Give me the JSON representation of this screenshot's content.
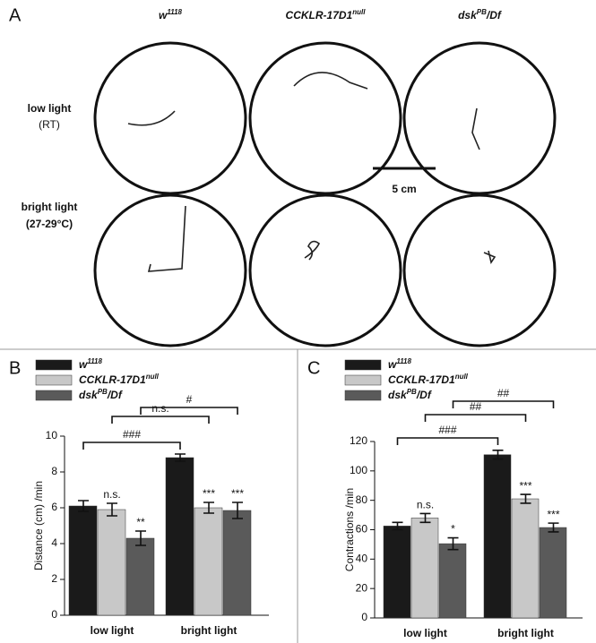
{
  "panel_a": {
    "label": "A",
    "columns": [
      [
        "w",
        "1118"
      ],
      [
        "CCKLR-17D1",
        "null"
      ],
      [
        "dsk",
        "PB",
        "/Df"
      ]
    ],
    "rows": [
      [
        "low light",
        "(RT)"
      ],
      [
        "bright light",
        "(27-29°C)"
      ]
    ],
    "scale_bar": "5 cm"
  },
  "chart_data": [
    {
      "type": "bar",
      "panel_label": "B",
      "y_label": "Distance (cm) /min",
      "categories": [
        "low light",
        "bright light"
      ],
      "series": [
        {
          "name": [
            "w",
            "1118"
          ],
          "color": "#1a1a1a",
          "values": [
            6.1,
            8.8
          ],
          "errors": [
            0.3,
            0.2
          ],
          "annotations": [
            null,
            null
          ]
        },
        {
          "name": [
            "CCKLR-17D1",
            "null"
          ],
          "color": "#c8c8c8",
          "values": [
            5.9,
            6.0
          ],
          "errors": [
            0.35,
            0.3
          ],
          "annotations": [
            "n.s.",
            "***"
          ]
        },
        {
          "name": [
            "dsk",
            "PB",
            "/Df"
          ],
          "color": "#5a5a5a",
          "values": [
            4.3,
            5.85
          ],
          "errors": [
            0.4,
            0.45
          ],
          "annotations": [
            "**",
            "***"
          ]
        }
      ],
      "brackets": [
        "###",
        "n.s.",
        "#"
      ],
      "ylim": [
        0,
        10
      ],
      "yticks": [
        0,
        2,
        4,
        6,
        8,
        10
      ]
    },
    {
      "type": "bar",
      "panel_label": "C",
      "y_label": "Contractions /min",
      "categories": [
        "low light",
        "bright light"
      ],
      "series": [
        {
          "name": [
            "w",
            "1118"
          ],
          "color": "#1a1a1a",
          "values": [
            62.5,
            111
          ],
          "errors": [
            2.5,
            3
          ],
          "annotations": [
            null,
            null
          ]
        },
        {
          "name": [
            "CCKLR-17D1",
            "null"
          ],
          "color": "#c8c8c8",
          "values": [
            68,
            81
          ],
          "errors": [
            3,
            3
          ],
          "annotations": [
            "n.s.",
            "***"
          ]
        },
        {
          "name": [
            "dsk",
            "PB",
            "/Df"
          ],
          "color": "#5a5a5a",
          "values": [
            50.5,
            61.5
          ],
          "errors": [
            4,
            3
          ],
          "annotations": [
            "*",
            "***"
          ]
        }
      ],
      "brackets": [
        "###",
        "##",
        "##"
      ],
      "ylim": [
        0,
        120
      ],
      "yticks": [
        0,
        20,
        40,
        60,
        80,
        100,
        120
      ]
    }
  ]
}
